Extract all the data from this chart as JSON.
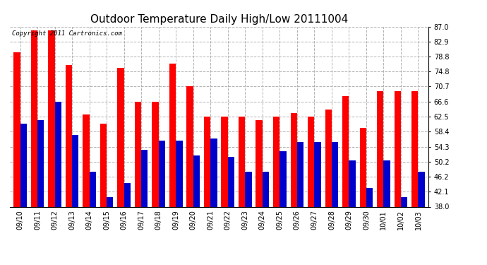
{
  "title": "Outdoor Temperature Daily High/Low 20111004",
  "copyright": "Copyright 2011 Cartronics.com",
  "dates": [
    "09/10",
    "09/11",
    "09/12",
    "09/13",
    "09/14",
    "09/15",
    "09/16",
    "09/17",
    "09/18",
    "09/19",
    "09/20",
    "09/21",
    "09/22",
    "09/23",
    "09/24",
    "09/25",
    "09/26",
    "09/27",
    "09/28",
    "09/29",
    "09/30",
    "10/01",
    "10/02",
    "10/03"
  ],
  "highs": [
    80.0,
    86.0,
    86.0,
    76.5,
    63.0,
    60.5,
    75.8,
    66.5,
    66.5,
    77.0,
    70.8,
    62.5,
    62.5,
    62.5,
    61.5,
    62.5,
    63.5,
    62.5,
    64.5,
    68.0,
    59.5,
    69.5,
    69.5,
    69.5
  ],
  "lows": [
    60.5,
    61.5,
    66.5,
    57.5,
    47.5,
    40.5,
    44.5,
    53.5,
    56.0,
    56.0,
    52.0,
    56.5,
    51.5,
    47.5,
    47.5,
    53.0,
    55.5,
    55.5,
    55.5,
    50.5,
    43.0,
    50.5,
    40.5,
    47.5
  ],
  "high_color": "#ff0000",
  "low_color": "#0000cc",
  "bg_color": "#ffffff",
  "yticks": [
    38.0,
    42.1,
    46.2,
    50.2,
    54.3,
    58.4,
    62.5,
    66.6,
    70.7,
    74.8,
    78.8,
    82.9,
    87.0
  ],
  "ymin": 38.0,
  "ymax": 87.0,
  "grid_color": "#aaaaaa",
  "title_fontsize": 11,
  "tick_fontsize": 7,
  "copyright_fontsize": 6.5
}
